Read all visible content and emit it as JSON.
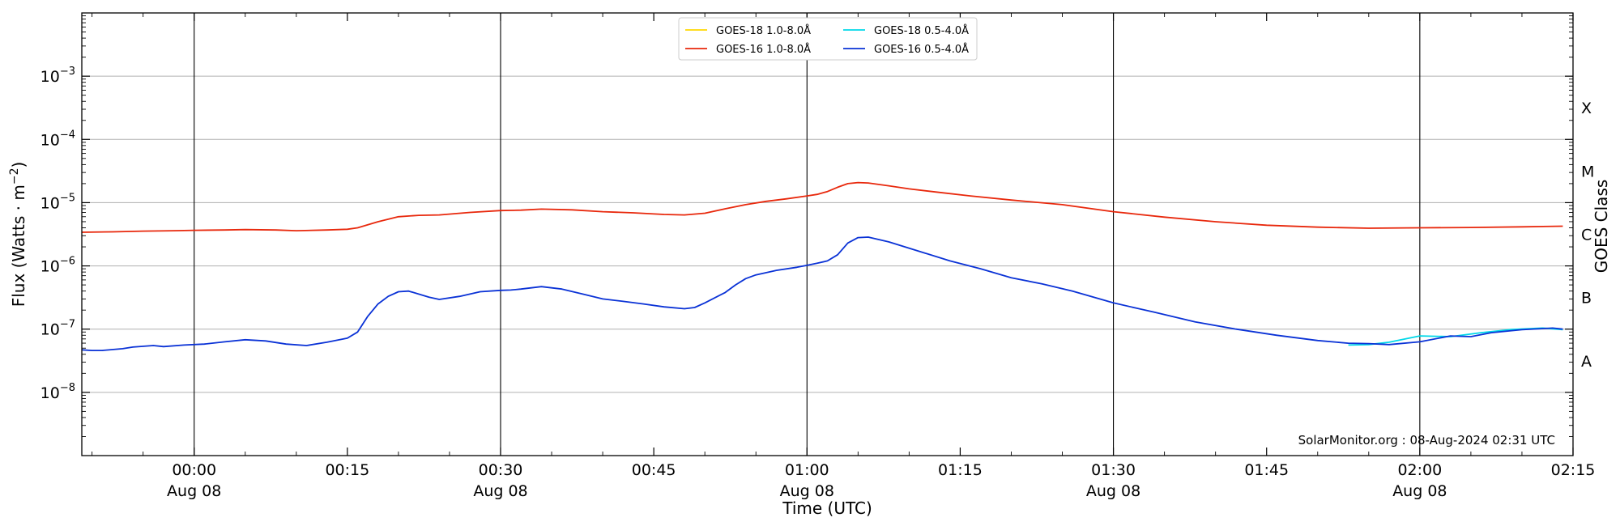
{
  "chart_data": {
    "type": "line",
    "ylabel": "Flux (Watts · m^-2)",
    "xlabel": "Time (UTC)",
    "right_label": "GOES Class",
    "y_scale": "log",
    "ylim": [
      1e-09,
      0.01
    ],
    "xlim": [
      "2024-08-07T23:49:00Z",
      "2024-08-08T02:15:00Z"
    ],
    "y_ticks": [
      {
        "value": 1e-08,
        "label": "10−8",
        "base": "10",
        "exp": "−8"
      },
      {
        "value": 1e-07,
        "label": "10−7",
        "base": "10",
        "exp": "−7"
      },
      {
        "value": 1e-06,
        "label": "10−6",
        "base": "10",
        "exp": "−6"
      },
      {
        "value": 1e-05,
        "label": "10−5",
        "base": "10",
        "exp": "−5"
      },
      {
        "value": 0.0001,
        "label": "10−4",
        "base": "10",
        "exp": "−4"
      },
      {
        "value": 0.001,
        "label": "10−3",
        "base": "10",
        "exp": "−3"
      }
    ],
    "x_ticks": [
      {
        "time": "2024-08-08T00:00:00Z",
        "label": "00:00",
        "sublabel": "Aug 08",
        "vline": true
      },
      {
        "time": "2024-08-08T00:15:00Z",
        "label": "00:15",
        "sublabel": "",
        "vline": false
      },
      {
        "time": "2024-08-08T00:30:00Z",
        "label": "00:30",
        "sublabel": "Aug 08",
        "vline": true
      },
      {
        "time": "2024-08-08T00:45:00Z",
        "label": "00:45",
        "sublabel": "",
        "vline": false
      },
      {
        "time": "2024-08-08T01:00:00Z",
        "label": "01:00",
        "sublabel": "Aug 08",
        "vline": true
      },
      {
        "time": "2024-08-08T01:15:00Z",
        "label": "01:15",
        "sublabel": "",
        "vline": false
      },
      {
        "time": "2024-08-08T01:30:00Z",
        "label": "01:30",
        "sublabel": "Aug 08",
        "vline": true
      },
      {
        "time": "2024-08-08T01:45:00Z",
        "label": "01:45",
        "sublabel": "",
        "vline": false
      },
      {
        "time": "2024-08-08T02:00:00Z",
        "label": "02:00",
        "sublabel": "Aug 08",
        "vline": true
      },
      {
        "time": "2024-08-08T02:15:00Z",
        "label": "02:15",
        "sublabel": "",
        "vline": false
      }
    ],
    "goes_classes": [
      {
        "label": "X",
        "value": 0.000316
      },
      {
        "label": "M",
        "value": 3.16e-05
      },
      {
        "label": "C",
        "value": 3.16e-06
      },
      {
        "label": "B",
        "value": 3.16e-07
      },
      {
        "label": "A",
        "value": 3.16e-08
      }
    ],
    "grid": true,
    "legend_position": "top-center",
    "watermark": "SolarMonitor.org : 08-Aug-2024 02:31 UTC",
    "series": [
      {
        "name": "GOES-18 1.0-8.0Å",
        "color": "#ffd700",
        "x": [],
        "y": []
      },
      {
        "name": "GOES-16 1.0-8.0Å",
        "color": "#e8280c",
        "x": [
          "2024-08-07T23:49:00Z",
          "2024-08-07T23:52:00Z",
          "2024-08-07T23:55:00Z",
          "2024-08-07T23:58:00Z",
          "2024-08-08T00:00:00Z",
          "2024-08-08T00:03:00Z",
          "2024-08-08T00:05:00Z",
          "2024-08-08T00:08:00Z",
          "2024-08-08T00:10:00Z",
          "2024-08-08T00:13:00Z",
          "2024-08-08T00:15:00Z",
          "2024-08-08T00:16:00Z",
          "2024-08-08T00:18:00Z",
          "2024-08-08T00:20:00Z",
          "2024-08-08T00:22:00Z",
          "2024-08-08T00:24:00Z",
          "2024-08-08T00:27:00Z",
          "2024-08-08T00:30:00Z",
          "2024-08-08T00:32:00Z",
          "2024-08-08T00:34:00Z",
          "2024-08-08T00:37:00Z",
          "2024-08-08T00:40:00Z",
          "2024-08-08T00:43:00Z",
          "2024-08-08T00:46:00Z",
          "2024-08-08T00:48:00Z",
          "2024-08-08T00:50:00Z",
          "2024-08-08T00:52:00Z",
          "2024-08-08T00:54:00Z",
          "2024-08-08T00:56:00Z",
          "2024-08-08T00:58:00Z",
          "2024-08-08T01:00:00Z",
          "2024-08-08T01:01:00Z",
          "2024-08-08T01:02:00Z",
          "2024-08-08T01:03:00Z",
          "2024-08-08T01:04:00Z",
          "2024-08-08T01:05:00Z",
          "2024-08-08T01:06:00Z",
          "2024-08-08T01:08:00Z",
          "2024-08-08T01:10:00Z",
          "2024-08-08T01:13:00Z",
          "2024-08-08T01:16:00Z",
          "2024-08-08T01:20:00Z",
          "2024-08-08T01:25:00Z",
          "2024-08-08T01:30:00Z",
          "2024-08-08T01:35:00Z",
          "2024-08-08T01:40:00Z",
          "2024-08-08T01:45:00Z",
          "2024-08-08T01:50:00Z",
          "2024-08-08T01:55:00Z",
          "2024-08-08T02:00:00Z",
          "2024-08-08T02:05:00Z",
          "2024-08-08T02:10:00Z",
          "2024-08-08T02:14:00Z"
        ],
        "y": [
          3.4e-06,
          3.45e-06,
          3.55e-06,
          3.6e-06,
          3.65e-06,
          3.7e-06,
          3.75e-06,
          3.7e-06,
          3.6e-06,
          3.7e-06,
          3.8e-06,
          4e-06,
          5e-06,
          6e-06,
          6.3e-06,
          6.4e-06,
          7e-06,
          7.5e-06,
          7.6e-06,
          7.9e-06,
          7.7e-06,
          7.2e-06,
          6.9e-06,
          6.5e-06,
          6.4e-06,
          6.8e-06,
          8e-06,
          9.3e-06,
          1.05e-05,
          1.15e-05,
          1.28e-05,
          1.35e-05,
          1.5e-05,
          1.75e-05,
          2e-05,
          2.08e-05,
          2.05e-05,
          1.85e-05,
          1.65e-05,
          1.45e-05,
          1.28e-05,
          1.1e-05,
          9.3e-06,
          7.2e-06,
          5.9e-06,
          5e-06,
          4.4e-06,
          4.1e-06,
          3.95e-06,
          4e-06,
          4.05e-06,
          4.15e-06,
          4.25e-06
        ]
      },
      {
        "name": "GOES-18 0.5-4.0Å",
        "color": "#00d8e8",
        "x": [
          "2024-08-08T01:53:00Z",
          "2024-08-08T01:55:00Z",
          "2024-08-08T01:57:00Z",
          "2024-08-08T02:00:00Z",
          "2024-08-08T02:03:00Z",
          "2024-08-08T02:06:00Z",
          "2024-08-08T02:09:00Z",
          "2024-08-08T02:12:00Z",
          "2024-08-08T02:14:00Z"
        ],
        "y": [
          5.6e-08,
          5.7e-08,
          6.2e-08,
          7.8e-08,
          7.6e-08,
          8.8e-08,
          9.9e-08,
          1.04e-07,
          9.8e-08
        ]
      },
      {
        "name": "GOES-16 0.5-4.0Å",
        "color": "#0a32d6",
        "x": [
          "2024-08-07T23:49:00Z",
          "2024-08-07T23:50:00Z",
          "2024-08-07T23:51:00Z",
          "2024-08-07T23:53:00Z",
          "2024-08-07T23:54:00Z",
          "2024-08-07T23:56:00Z",
          "2024-08-07T23:57:00Z",
          "2024-08-07T23:59:00Z",
          "2024-08-08T00:01:00Z",
          "2024-08-08T00:03:00Z",
          "2024-08-08T00:05:00Z",
          "2024-08-08T00:07:00Z",
          "2024-08-08T00:09:00Z",
          "2024-08-08T00:11:00Z",
          "2024-08-08T00:13:00Z",
          "2024-08-08T00:15:00Z",
          "2024-08-08T00:16:00Z",
          "2024-08-08T00:17:00Z",
          "2024-08-08T00:18:00Z",
          "2024-08-08T00:19:00Z",
          "2024-08-08T00:20:00Z",
          "2024-08-08T00:21:00Z",
          "2024-08-08T00:23:00Z",
          "2024-08-08T00:24:00Z",
          "2024-08-08T00:26:00Z",
          "2024-08-08T00:28:00Z",
          "2024-08-08T00:30:00Z",
          "2024-08-08T00:31:00Z",
          "2024-08-08T00:32:00Z",
          "2024-08-08T00:34:00Z",
          "2024-08-08T00:36:00Z",
          "2024-08-08T00:38:00Z",
          "2024-08-08T00:40:00Z",
          "2024-08-08T00:42:00Z",
          "2024-08-08T00:44:00Z",
          "2024-08-08T00:46:00Z",
          "2024-08-08T00:48:00Z",
          "2024-08-08T00:49:00Z",
          "2024-08-08T00:50:00Z",
          "2024-08-08T00:52:00Z",
          "2024-08-08T00:53:00Z",
          "2024-08-08T00:54:00Z",
          "2024-08-08T00:55:00Z",
          "2024-08-08T00:57:00Z",
          "2024-08-08T00:59:00Z",
          "2024-08-08T01:00:00Z",
          "2024-08-08T01:01:00Z",
          "2024-08-08T01:02:00Z",
          "2024-08-08T01:03:00Z",
          "2024-08-08T01:04:00Z",
          "2024-08-08T01:05:00Z",
          "2024-08-08T01:06:00Z",
          "2024-08-08T01:08:00Z",
          "2024-08-08T01:11:00Z",
          "2024-08-08T01:14:00Z",
          "2024-08-08T01:17:00Z",
          "2024-08-08T01:20:00Z",
          "2024-08-08T01:23:00Z",
          "2024-08-08T01:26:00Z",
          "2024-08-08T01:30:00Z",
          "2024-08-08T01:34:00Z",
          "2024-08-08T01:38:00Z",
          "2024-08-08T01:42:00Z",
          "2024-08-08T01:46:00Z",
          "2024-08-08T01:50:00Z",
          "2024-08-08T01:53:00Z",
          "2024-08-08T01:55:00Z",
          "2024-08-08T01:57:00Z",
          "2024-08-08T02:00:00Z",
          "2024-08-08T02:03:00Z",
          "2024-08-08T02:05:00Z",
          "2024-08-08T02:07:00Z",
          "2024-08-08T02:10:00Z",
          "2024-08-08T02:13:00Z",
          "2024-08-08T02:14:00Z"
        ],
        "y": [
          4.7e-08,
          4.6e-08,
          4.6e-08,
          4.9e-08,
          5.2e-08,
          5.5e-08,
          5.3e-08,
          5.6e-08,
          5.8e-08,
          6.3e-08,
          6.8e-08,
          6.5e-08,
          5.8e-08,
          5.5e-08,
          6.2e-08,
          7.2e-08,
          9e-08,
          1.6e-07,
          2.5e-07,
          3.3e-07,
          3.9e-07,
          4e-07,
          3.2e-07,
          2.95e-07,
          3.3e-07,
          3.9e-07,
          4.1e-07,
          4.15e-07,
          4.3e-07,
          4.7e-07,
          4.3e-07,
          3.6e-07,
          3e-07,
          2.75e-07,
          2.5e-07,
          2.25e-07,
          2.1e-07,
          2.2e-07,
          2.6e-07,
          3.8e-07,
          5e-07,
          6.3e-07,
          7.2e-07,
          8.5e-07,
          9.5e-07,
          1.02e-06,
          1.1e-06,
          1.2e-06,
          1.5e-06,
          2.3e-06,
          2.8e-06,
          2.85e-06,
          2.4e-06,
          1.7e-06,
          1.2e-06,
          9e-07,
          6.5e-07,
          5.2e-07,
          4e-07,
          2.6e-07,
          1.85e-07,
          1.3e-07,
          1e-07,
          8e-08,
          6.6e-08,
          6e-08,
          5.9e-08,
          5.7e-08,
          6.3e-08,
          7.8e-08,
          7.6e-08,
          8.8e-08,
          9.8e-08,
          1.04e-07,
          1e-07
        ]
      }
    ]
  }
}
